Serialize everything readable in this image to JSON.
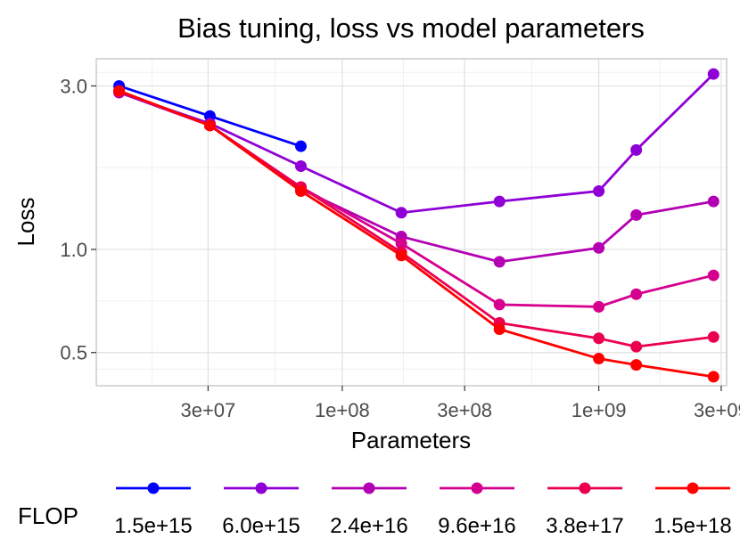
{
  "chart_data": {
    "type": "line",
    "title": "Bias tuning, loss vs model parameters",
    "xlabel": "Parameters",
    "ylabel": "Loss",
    "xscale": "log",
    "yscale": "log",
    "xlim": [
      11000000,
      3150000000
    ],
    "ylim": [
      0.4,
      3.6
    ],
    "x_ticks": [
      {
        "value": 30000000,
        "label": "3e+07"
      },
      {
        "value": 100000000,
        "label": "1e+08"
      },
      {
        "value": 300000000,
        "label": "3e+08"
      },
      {
        "value": 1000000000,
        "label": "1e+09"
      },
      {
        "value": 3000000000,
        "label": "3e+09"
      }
    ],
    "y_ticks": [
      {
        "value": 0.5,
        "label": "0.5"
      },
      {
        "value": 1.0,
        "label": "1.0"
      },
      {
        "value": 3.0,
        "label": "3.0"
      }
    ],
    "grid": true,
    "legend_title": "FLOP",
    "legend_position": "bottom",
    "x": [
      13500000,
      30500000,
      69000000,
      170000000,
      410000000,
      1000000000,
      1400000000,
      2800000000
    ],
    "series": [
      {
        "name": "1.5e+15",
        "color": "#0000ff",
        "values": [
          3.0,
          2.45,
          2.0,
          null,
          null,
          null,
          null,
          null
        ]
      },
      {
        "name": "6.0e+15",
        "color": "#8f00d6",
        "values": [
          2.87,
          2.33,
          1.75,
          1.28,
          1.38,
          1.48,
          1.95,
          3.25
        ]
      },
      {
        "name": "2.4e+16",
        "color": "#b300b3",
        "values": [
          2.87,
          2.3,
          1.5,
          1.09,
          0.92,
          1.01,
          1.26,
          1.38
        ]
      },
      {
        "name": "9.6e+16",
        "color": "#d6008f",
        "values": [
          2.9,
          2.3,
          1.52,
          1.04,
          0.69,
          0.68,
          0.74,
          0.84
        ]
      },
      {
        "name": "3.8e+17",
        "color": "#eb0050",
        "values": [
          2.9,
          2.3,
          1.52,
          0.98,
          0.61,
          0.55,
          0.52,
          0.555
        ]
      },
      {
        "name": "1.5e+18",
        "color": "#ff0000",
        "values": [
          2.9,
          2.3,
          1.48,
          0.96,
          0.585,
          0.48,
          0.46,
          0.425
        ]
      }
    ]
  }
}
